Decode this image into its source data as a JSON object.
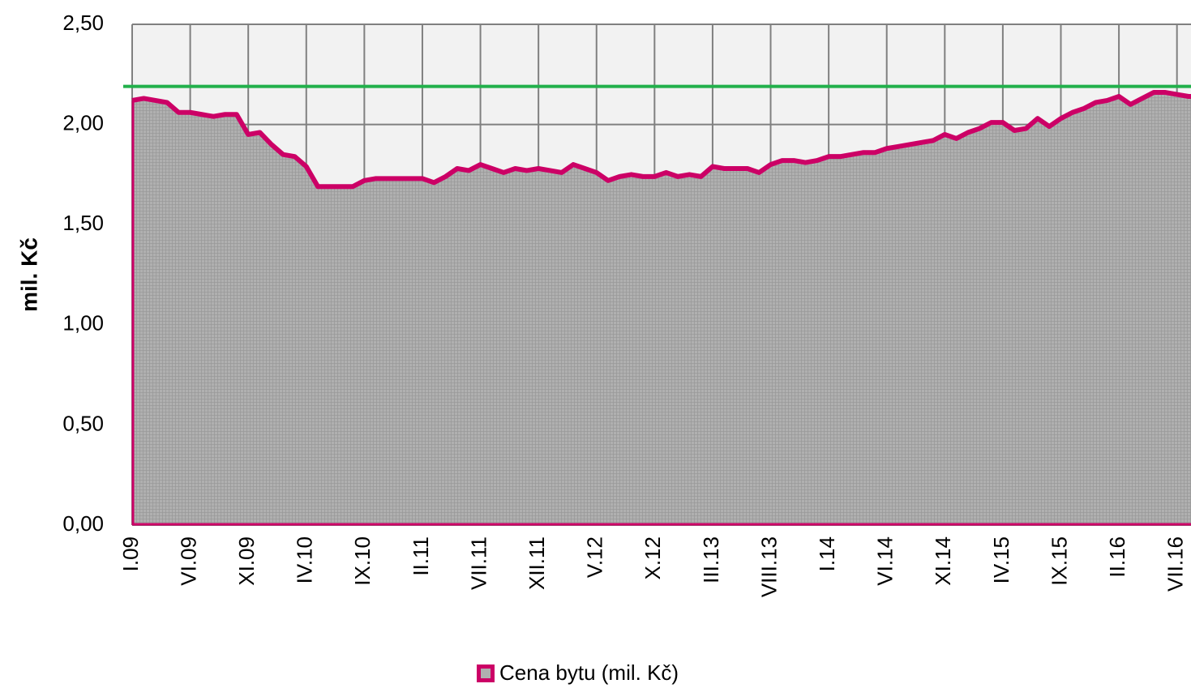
{
  "chart_data": {
    "type": "area",
    "y_label": "mil. Kč",
    "categories": [
      "I.09",
      null,
      null,
      null,
      null,
      "VI.09",
      null,
      null,
      null,
      null,
      "XI.09",
      null,
      null,
      null,
      null,
      "IV.10",
      null,
      null,
      null,
      null,
      "IX.10",
      null,
      null,
      null,
      null,
      "II.11",
      null,
      null,
      null,
      null,
      "VII.11",
      null,
      null,
      null,
      null,
      "XII.11",
      null,
      null,
      null,
      null,
      "V.12",
      null,
      null,
      null,
      null,
      "X.12",
      null,
      null,
      null,
      null,
      "III.13",
      null,
      null,
      null,
      null,
      "VIII.13",
      null,
      null,
      null,
      null,
      "I.14",
      null,
      null,
      null,
      null,
      "VI.14",
      null,
      null,
      null,
      null,
      "XI.14",
      null,
      null,
      null,
      null,
      "IV.15",
      null,
      null,
      null,
      null,
      "IX.15",
      null,
      null,
      null,
      null,
      "II.16",
      null,
      null,
      null,
      null,
      "VII.16",
      null
    ],
    "series": [
      {
        "name": "Cena bytu (mil. Kč)",
        "color": "#cc0066",
        "fill": "#b0b0b0",
        "values": [
          2.12,
          2.13,
          2.12,
          2.11,
          2.06,
          2.06,
          2.05,
          2.04,
          2.05,
          2.05,
          1.95,
          1.96,
          1.9,
          1.85,
          1.84,
          1.79,
          1.69,
          1.69,
          1.69,
          1.69,
          1.72,
          1.73,
          1.73,
          1.73,
          1.73,
          1.73,
          1.71,
          1.74,
          1.78,
          1.77,
          1.8,
          1.78,
          1.76,
          1.78,
          1.77,
          1.78,
          1.77,
          1.76,
          1.8,
          1.78,
          1.76,
          1.72,
          1.74,
          1.75,
          1.74,
          1.74,
          1.76,
          1.74,
          1.75,
          1.74,
          1.79,
          1.78,
          1.78,
          1.78,
          1.76,
          1.8,
          1.82,
          1.82,
          1.81,
          1.82,
          1.84,
          1.84,
          1.85,
          1.86,
          1.86,
          1.88,
          1.89,
          1.9,
          1.91,
          1.92,
          1.95,
          1.93,
          1.96,
          1.98,
          2.01,
          2.01,
          1.97,
          1.98,
          2.03,
          1.99,
          2.03,
          2.06,
          2.08,
          2.11,
          2.12,
          2.14,
          2.1,
          2.13,
          2.16,
          2.16,
          2.15,
          2.14
        ]
      }
    ],
    "reference_line": {
      "value": 2.19,
      "color": "#22b04b"
    },
    "ylim": [
      0,
      2.5
    ],
    "yticks": [
      {
        "value": 0,
        "label": "0,00"
      },
      {
        "value": 0.5,
        "label": "0,50"
      },
      {
        "value": 1,
        "label": "1,00"
      },
      {
        "value": 1.5,
        "label": "1,50"
      },
      {
        "value": 2,
        "label": "2,00"
      },
      {
        "value": 2.5,
        "label": "2,50"
      }
    ],
    "grid": true,
    "legend": "bottom"
  }
}
